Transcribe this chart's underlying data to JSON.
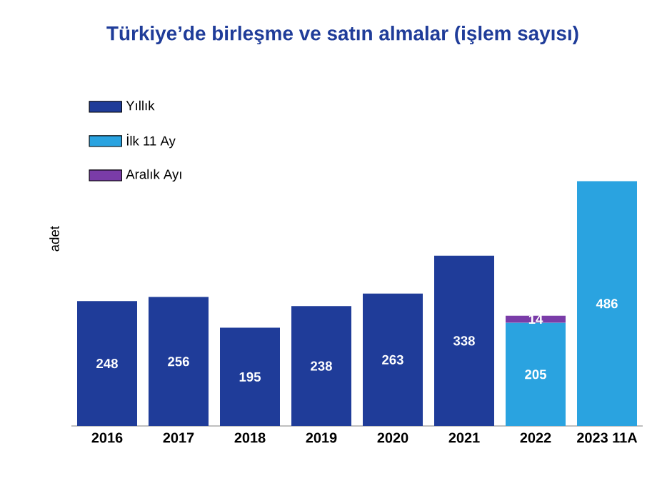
{
  "chart_data": {
    "type": "bar",
    "title": "Türkiye’de birleşme ve satın almalar (işlem sayısı)",
    "ylabel": "adet",
    "categories": [
      "2016",
      "2017",
      "2018",
      "2019",
      "2020",
      "2021",
      "2022",
      "2023 11A"
    ],
    "stacked": true,
    "data_labels": true,
    "legend": "top left",
    "series": [
      {
        "name": "Yıllık",
        "color": "#1f3c99",
        "values": [
          248,
          256,
          195,
          238,
          263,
          338,
          null,
          null
        ]
      },
      {
        "name": "İlk 11 Ay",
        "color": "#2aa3e0",
        "values": [
          null,
          null,
          null,
          null,
          null,
          null,
          205,
          486
        ]
      },
      {
        "name": "Aralık Ayı",
        "color": "#7a3ca8",
        "values": [
          null,
          null,
          null,
          null,
          null,
          null,
          14,
          null
        ]
      }
    ]
  }
}
